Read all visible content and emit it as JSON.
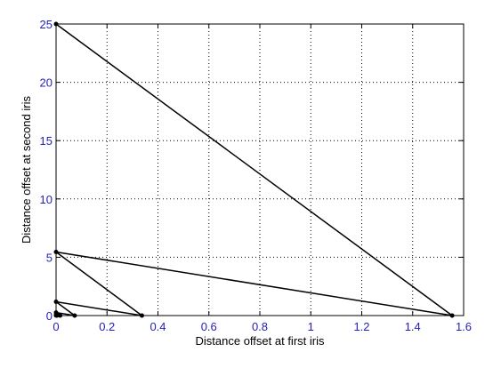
{
  "chart_data": {
    "type": "line",
    "xlabel": "Distance offset at first iris",
    "ylabel": "Distance offset at second iris",
    "xlim": [
      0,
      1.6
    ],
    "ylim": [
      0,
      25
    ],
    "grid": true,
    "x_ticks": [
      "0",
      "0.2",
      "0.4",
      "0.6",
      "0.8",
      "1",
      "1.2",
      "1.4",
      "1.6"
    ],
    "y_ticks": [
      "0",
      "5",
      "10",
      "15",
      "20",
      "25"
    ],
    "x_tick_values": [
      0,
      0.2,
      0.4,
      0.6,
      0.8,
      1.0,
      1.2,
      1.4,
      1.6
    ],
    "y_tick_values": [
      0,
      5,
      10,
      15,
      20,
      25
    ],
    "series": [
      {
        "color": "#000000",
        "x": [
          0.0,
          1.555,
          0.0,
          0.337,
          0.0,
          0.073,
          0.0,
          0.016,
          0.0,
          0.003,
          0.0
        ],
        "y": [
          25.0,
          0.0,
          5.45,
          0.0,
          1.18,
          0.0,
          0.26,
          0.0,
          0.06,
          0.0,
          0.01
        ]
      }
    ]
  }
}
